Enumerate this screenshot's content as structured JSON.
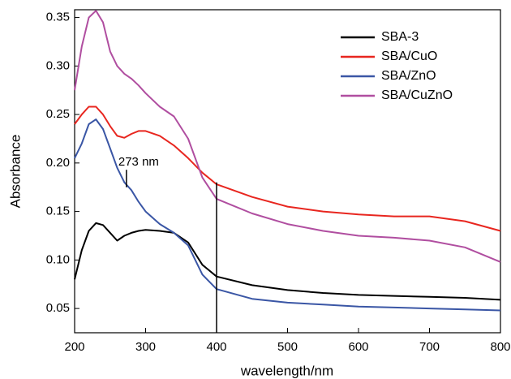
{
  "chart_data": {
    "type": "line",
    "xlabel": "wavelength/nm",
    "ylabel": "Absorbance",
    "x": [
      200,
      210,
      220,
      230,
      240,
      250,
      260,
      270,
      280,
      290,
      300,
      320,
      340,
      360,
      380,
      400,
      450,
      500,
      550,
      600,
      650,
      700,
      750,
      800
    ],
    "series": [
      {
        "name": "SBA-3",
        "color": "#000000",
        "values": [
          0.08,
          0.11,
          0.13,
          0.138,
          0.136,
          0.128,
          0.12,
          0.125,
          0.128,
          0.13,
          0.131,
          0.13,
          0.128,
          0.118,
          0.095,
          0.083,
          0.074,
          0.069,
          0.066,
          0.064,
          0.063,
          0.062,
          0.061,
          0.059
        ]
      },
      {
        "name": "SBA/CuO",
        "color": "#e8261f",
        "values": [
          0.24,
          0.25,
          0.258,
          0.258,
          0.25,
          0.238,
          0.228,
          0.226,
          0.23,
          0.233,
          0.233,
          0.228,
          0.218,
          0.205,
          0.19,
          0.178,
          0.165,
          0.155,
          0.15,
          0.147,
          0.145,
          0.145,
          0.14,
          0.13
        ]
      },
      {
        "name": "SBA/ZnO",
        "color": "#3a56a5",
        "values": [
          0.205,
          0.22,
          0.24,
          0.245,
          0.235,
          0.215,
          0.195,
          0.18,
          0.172,
          0.16,
          0.15,
          0.137,
          0.128,
          0.115,
          0.085,
          0.07,
          0.06,
          0.056,
          0.054,
          0.052,
          0.051,
          0.05,
          0.049,
          0.048
        ]
      },
      {
        "name": "SBA/CuZnO",
        "color": "#b04ea0",
        "values": [
          0.275,
          0.32,
          0.35,
          0.357,
          0.345,
          0.315,
          0.3,
          0.292,
          0.287,
          0.28,
          0.272,
          0.258,
          0.248,
          0.225,
          0.185,
          0.163,
          0.148,
          0.137,
          0.13,
          0.125,
          0.123,
          0.12,
          0.113,
          0.098
        ]
      }
    ],
    "xlim": [
      200,
      800
    ],
    "xticks": [
      200,
      300,
      400,
      500,
      600,
      700,
      800
    ],
    "ylim": [
      0.025,
      0.358
    ],
    "yticks": [
      0.05,
      {
        "value": 0.1,
        "label": "0.10"
      },
      0.15,
      {
        "value": 0.2,
        "label": "0.20"
      },
      0.25,
      {
        "value": 0.3,
        "label": "0.30"
      },
      0.35
    ],
    "annotations": [
      {
        "text": "273 nm",
        "x": 273,
        "y": [
          0.175,
          0.193
        ]
      }
    ],
    "marker_lines": [
      {
        "x": 400,
        "y": [
          0.025,
          0.18
        ]
      }
    ],
    "legend": "upper right",
    "grid": false
  }
}
